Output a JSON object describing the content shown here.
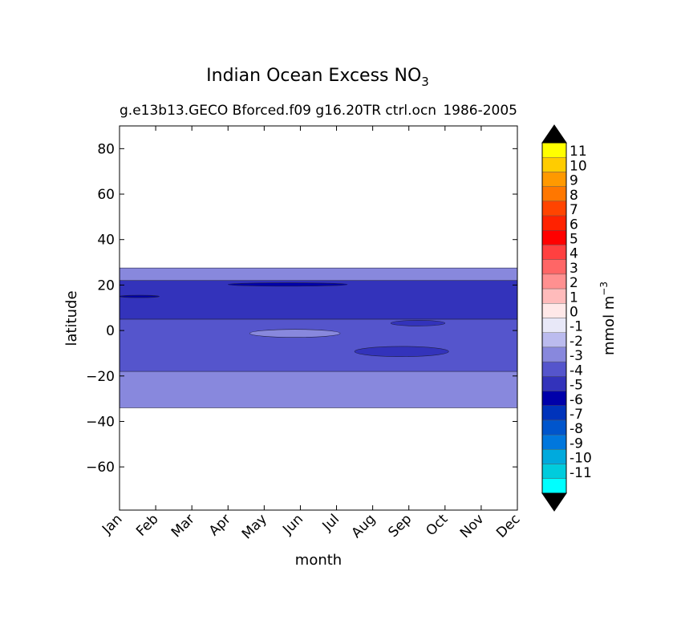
{
  "chart_data": {
    "type": "contourf",
    "title": "Indian Ocean Excess NO",
    "title_subscript": "3",
    "subtitle_left": "g.e13b13.GECO Bforced.f09 g16.20TR ctrl.ocn",
    "subtitle_right": "1986-2005",
    "xlabel": "month",
    "ylabel": "latitude",
    "x_ticks": [
      "Jan",
      "Feb",
      "Mar",
      "Apr",
      "May",
      "Jun",
      "Jul",
      "Aug",
      "Sep",
      "Oct",
      "Nov",
      "Dec"
    ],
    "y_ticks": [
      80,
      60,
      40,
      20,
      0,
      -20,
      -40,
      -60
    ],
    "y_tick_labels": [
      "80",
      "60",
      "40",
      "20",
      "0",
      "−20",
      "−40",
      "−60"
    ],
    "ylim": [
      -79,
      90
    ],
    "colorbar": {
      "label": "mmol m",
      "label_superscript": "−3",
      "extend": "both",
      "extend_color": "#000000",
      "levels": [
        "11",
        "10",
        "9",
        "8",
        "7",
        "6",
        "5",
        "4",
        "3",
        "2",
        "1",
        "0",
        "-1",
        "-2",
        "-3",
        "-4",
        "-5",
        "-6",
        "-7",
        "-8",
        "-9",
        "-10",
        "-11"
      ],
      "colors": [
        "#ffff00",
        "#ffcc00",
        "#ff9900",
        "#ff7700",
        "#ff4400",
        "#ff2200",
        "#ff0000",
        "#ff4040",
        "#ff6666",
        "#ff9090",
        "#ffbbbb",
        "#ffe8e8",
        "#e8e8f8",
        "#bbbbee",
        "#8888dd",
        "#5555cc",
        "#3333bb",
        "#0000aa",
        "#0033bb",
        "#0055cc",
        "#0077dd",
        "#00aadd",
        "#00ccdd",
        "#00ffff"
      ]
    },
    "bands": [
      {
        "level": "-2",
        "lat_min": -34,
        "lat_max": 27.5
      },
      {
        "level": "-3",
        "lat_min": -18,
        "lat_max": 5
      },
      {
        "level": "-4",
        "lat_min": 5,
        "lat_max": 22
      }
    ],
    "patches": [
      {
        "level": "-2",
        "month_start": 3.6,
        "month_end": 6.1,
        "lat_min": -3,
        "lat_max": 0.5
      },
      {
        "level": "-4",
        "month_start": 6.5,
        "month_end": 9.1,
        "lat_min": -11.5,
        "lat_max": -7
      },
      {
        "level": "-4",
        "month_start": 7.5,
        "month_end": 9.0,
        "lat_min": 2,
        "lat_max": 4.5
      },
      {
        "level": "-5",
        "month_start": 3.0,
        "month_end": 6.3,
        "lat_min": 19.5,
        "lat_max": 21
      },
      {
        "level": "-5",
        "month_start": 0.0,
        "month_end": 1.1,
        "lat_min": 14.5,
        "lat_max": 15.5
      }
    ]
  }
}
